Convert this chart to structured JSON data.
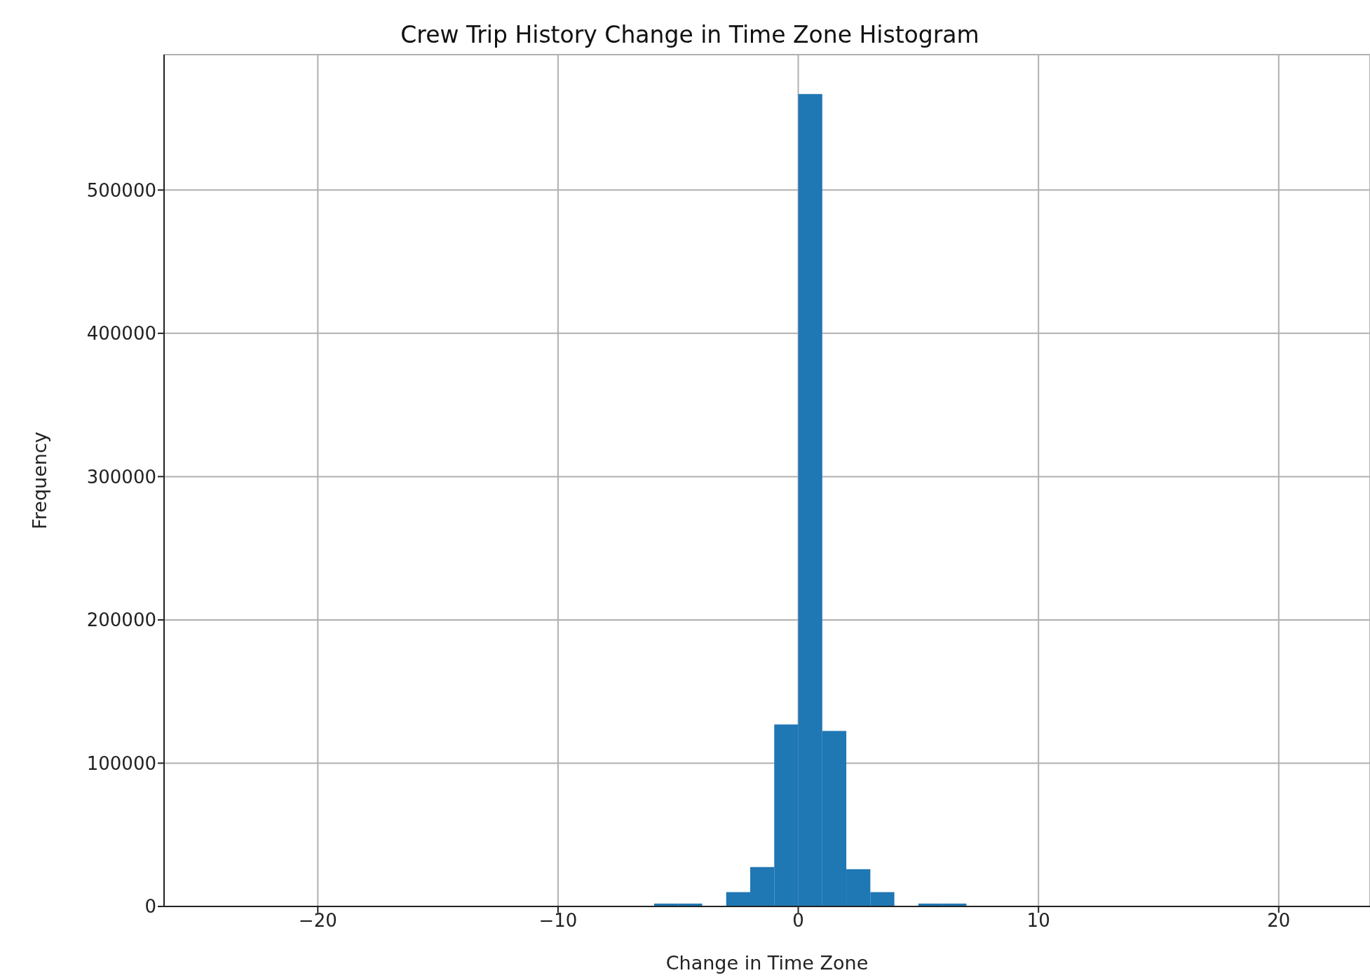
{
  "chart_data": {
    "type": "histogram",
    "title": "Crew Trip History Change in Time Zone Histogram",
    "xlabel": "Change in Time Zone",
    "ylabel": "Frequency",
    "bins": [
      -7,
      -6,
      -5,
      -4,
      -3,
      -2,
      -1,
      0,
      1,
      2,
      3,
      4,
      5,
      6,
      7
    ],
    "values": [
      0,
      2000,
      2000,
      0,
      10000,
      27500,
      127000,
      567000,
      122500,
      26000,
      10000,
      0,
      2000,
      2000
    ],
    "color": "#1f77b4",
    "xlim": [
      -26.4,
      23.8
    ],
    "xticks": [
      -20,
      -10,
      0,
      10,
      20
    ],
    "ylim": [
      0,
      594500
    ],
    "yticks": [
      0,
      100000,
      200000,
      300000,
      400000,
      500000
    ],
    "grid": true
  }
}
